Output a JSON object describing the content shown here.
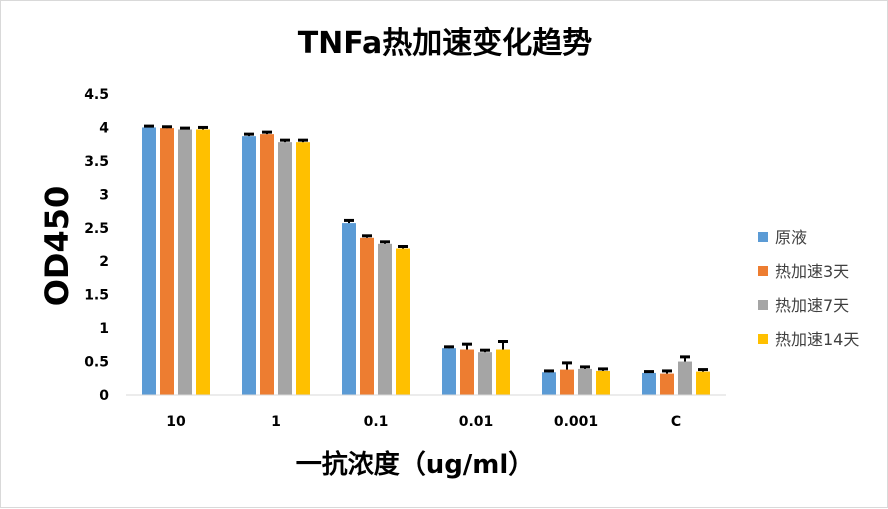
{
  "chart_data": {
    "type": "bar",
    "title": "TNFa热加速变化趋势",
    "xlabel": "一抗浓度（ug/ml）",
    "ylabel": "OD450",
    "categories": [
      "10",
      "1",
      "0.1",
      "0.01",
      "0.001",
      "C"
    ],
    "ylim": [
      0,
      4.5
    ],
    "yticks": [
      "0",
      "0.5",
      "1",
      "1.5",
      "2",
      "2.5",
      "3",
      "3.5",
      "4",
      "4.5"
    ],
    "grid": false,
    "legend_position": "right",
    "series": [
      {
        "name": "原液",
        "color": "#5B9BD5",
        "values": [
          4.0,
          3.87,
          2.57,
          0.7,
          0.34,
          0.33
        ],
        "errors": [
          0.02,
          0.03,
          0.04,
          0.02,
          0.02,
          0.02
        ]
      },
      {
        "name": "热加速3天",
        "color": "#ED7D31",
        "values": [
          3.99,
          3.9,
          2.35,
          0.68,
          0.38,
          0.32
        ],
        "errors": [
          0.02,
          0.03,
          0.03,
          0.08,
          0.1,
          0.04
        ]
      },
      {
        "name": "热加速7天",
        "color": "#A5A5A5",
        "values": [
          3.97,
          3.78,
          2.26,
          0.64,
          0.39,
          0.5
        ],
        "errors": [
          0.02,
          0.03,
          0.03,
          0.03,
          0.03,
          0.07
        ]
      },
      {
        "name": "热加速14天",
        "color": "#FFC000",
        "values": [
          3.97,
          3.78,
          2.19,
          0.68,
          0.36,
          0.35
        ],
        "errors": [
          0.03,
          0.03,
          0.03,
          0.12,
          0.03,
          0.03
        ]
      }
    ]
  }
}
